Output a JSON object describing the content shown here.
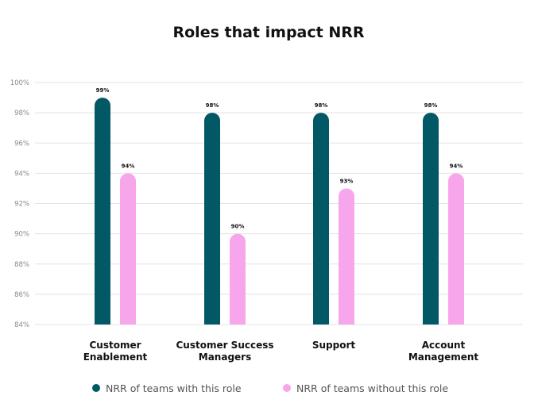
{
  "chart_data": {
    "type": "bar",
    "title": "Roles that impact NRR",
    "xlabel": "",
    "ylabel": "",
    "categories": [
      "Customer\nEnablement",
      "Customer Success\nManagers",
      "Support",
      "Account\nManagement"
    ],
    "series": [
      {
        "name": "NRR of teams with this role",
        "values": [
          99,
          98,
          98,
          98
        ],
        "labels": [
          "99%",
          "98%",
          "98%",
          "98%"
        ]
      },
      {
        "name": "NRR of teams without this role",
        "values": [
          94,
          90,
          93,
          94
        ],
        "labels": [
          "94%",
          "90%",
          "93%",
          "94%"
        ]
      }
    ],
    "ylim": [
      84,
      100
    ],
    "yticks": [
      84,
      86,
      88,
      90,
      92,
      94,
      96,
      98,
      100
    ],
    "ytick_labels": [
      "84%",
      "86%",
      "88%",
      "90%",
      "92%",
      "94%",
      "96%",
      "98%",
      "100%"
    ],
    "grid": true,
    "legend_position": "bottom",
    "colors": {
      "series_with": "#035866",
      "series_without": "#f7a6ec",
      "grid": "#e3e3e3",
      "text": "#111111",
      "tick_text": "#8a8a8a"
    }
  }
}
